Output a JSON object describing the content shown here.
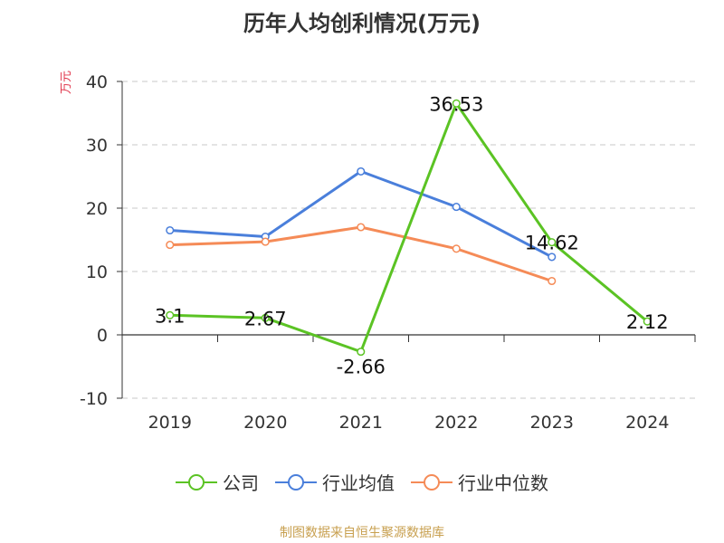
{
  "chart_data": {
    "type": "line",
    "title": "历年人均创利情况(万元)",
    "ylabel": "万元",
    "xlabel": "",
    "categories": [
      "2019",
      "2020",
      "2021",
      "2022",
      "2023",
      "2024"
    ],
    "ylim": [
      -10,
      40
    ],
    "yticks": [
      -10,
      0,
      10,
      20,
      30,
      40
    ],
    "grid": "horizontal dashed",
    "legend_position": "bottom",
    "series": [
      {
        "name": "公司",
        "color": "#5bc324",
        "values": [
          3.1,
          2.67,
          -2.66,
          36.53,
          14.62,
          2.12
        ],
        "labels": [
          "3.1",
          "2.67",
          "-2.66",
          "36.53",
          "14.62",
          "2.12"
        ]
      },
      {
        "name": "行业均值",
        "color": "#4a7fdb",
        "values": [
          16.5,
          15.5,
          25.8,
          20.2,
          12.3,
          null
        ]
      },
      {
        "name": "行业中位数",
        "color": "#f58b57",
        "values": [
          14.2,
          14.7,
          17.0,
          13.6,
          8.5,
          null
        ]
      }
    ]
  },
  "source_note": "制图数据来自恒生聚源数据库"
}
